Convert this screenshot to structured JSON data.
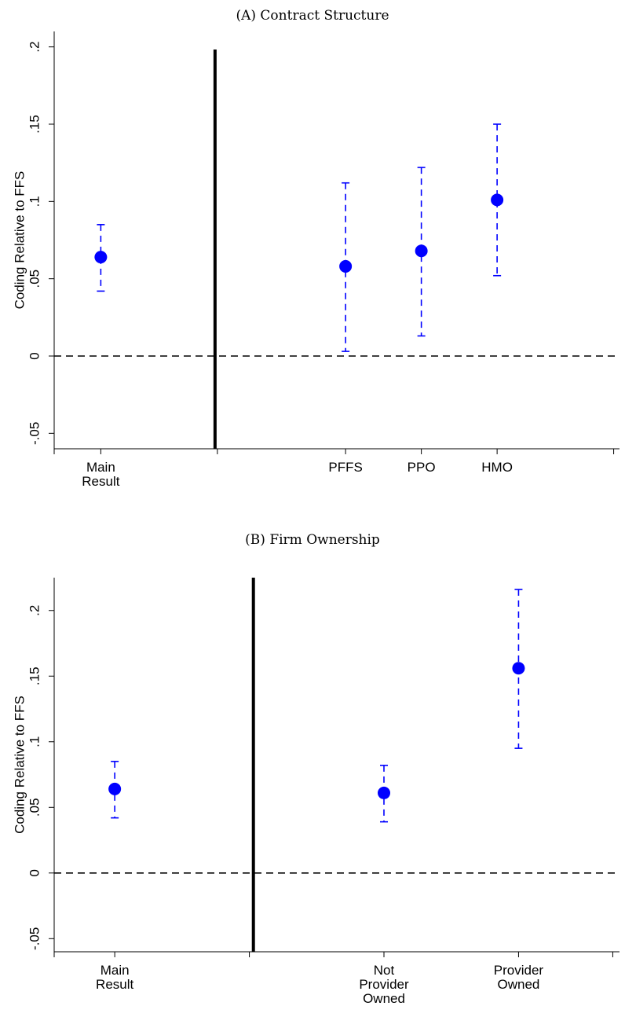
{
  "chart_data": [
    {
      "type": "scatter",
      "title": "(A) Contract Structure",
      "ylabel": "Coding Relative to FFS",
      "ylim": [
        -0.06,
        0.21
      ],
      "yticks": [
        -0.05,
        0,
        0.05,
        0.1,
        0.15,
        0.2
      ],
      "ytick_labels": [
        "-.05",
        "0",
        ".05",
        ".1",
        ".15",
        ".2"
      ],
      "categories": [
        "Main Result",
        "PFFS",
        "PPO",
        "HMO"
      ],
      "points": [
        {
          "label_lines": [
            "Main",
            "Result"
          ],
          "x": 1,
          "y": 0.064,
          "ci_low": 0.042,
          "ci_high": 0.085
        },
        {
          "label_lines": [
            "PFFS"
          ],
          "x": 3.1,
          "y": 0.058,
          "ci_low": 0.003,
          "ci_high": 0.112
        },
        {
          "label_lines": [
            "PPO"
          ],
          "x": 3.75,
          "y": 0.068,
          "ci_low": 0.013,
          "ci_high": 0.122
        },
        {
          "label_lines": [
            "HMO"
          ],
          "x": 4.4,
          "y": 0.101,
          "ci_low": 0.052,
          "ci_high": 0.15
        }
      ],
      "xlim": [
        0.6,
        5.45
      ],
      "xticks": [
        0.6,
        1,
        2,
        3.1,
        3.75,
        4.4,
        5.4
      ],
      "separator_x": 1.98,
      "reference_line_y": 0,
      "marker_color": "#0000ff",
      "ci_color": "#0000ff",
      "grid": false,
      "legend": "none"
    },
    {
      "type": "scatter",
      "title": "(B) Firm Ownership",
      "ylabel": "Coding Relative to FFS",
      "ylim": [
        -0.06,
        0.225
      ],
      "yticks": [
        -0.05,
        0,
        0.05,
        0.1,
        0.15,
        0.2
      ],
      "ytick_labels": [
        "-.05",
        "0",
        ".05",
        ".1",
        ".15",
        ".2"
      ],
      "categories": [
        "Main Result",
        "Not Provider Owned",
        "Provider Owned"
      ],
      "points": [
        {
          "label_lines": [
            "Main",
            "Result"
          ],
          "x": 1,
          "y": 0.064,
          "ci_low": 0.042,
          "ci_high": 0.085
        },
        {
          "label_lines": [
            "Not",
            "Provider",
            "Owned"
          ],
          "x": 3,
          "y": 0.061,
          "ci_low": 0.039,
          "ci_high": 0.082
        },
        {
          "label_lines": [
            "Provider",
            "Owned"
          ],
          "x": 4,
          "y": 0.156,
          "ci_low": 0.095,
          "ci_high": 0.216
        }
      ],
      "xlim": [
        0.55,
        4.75
      ],
      "xticks": [
        0.55,
        1,
        2,
        3,
        4,
        4.7
      ],
      "separator_x": 2.03,
      "reference_line_y": 0,
      "marker_color": "#0000ff",
      "ci_color": "#0000ff",
      "grid": false,
      "legend": "none"
    }
  ]
}
